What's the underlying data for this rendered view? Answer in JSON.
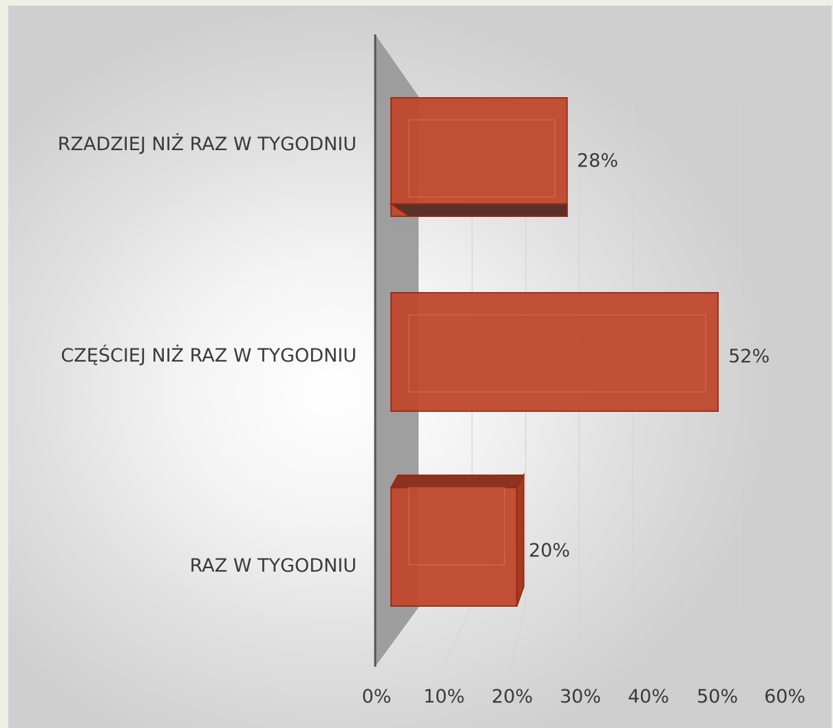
{
  "chart_data": {
    "type": "bar",
    "orientation": "horizontal",
    "style": "3d-clustered-bar",
    "categories": [
      "RZADZIEJ NIŻ RAZ W TYGODNIU",
      "CZĘŚCIEJ NIŻ RAZ W TYGODNIU",
      "RAZ W TYGODNIU"
    ],
    "values": [
      28,
      52,
      20
    ],
    "value_labels": [
      "28%",
      "52%",
      "20%"
    ],
    "title": "",
    "xlabel": "",
    "ylabel": "",
    "xlim": [
      0,
      60
    ],
    "x_ticks": [
      "0%",
      "10%",
      "20%",
      "30%",
      "40%",
      "50%",
      "60%"
    ],
    "grid": true,
    "legend": "none",
    "colors": {
      "bar": "#c0482d",
      "bar_edge": "#9a2a15",
      "bar_shadow": "#5a3028",
      "wall": "#9a9a9a",
      "axis": "#555555",
      "gridline": "#d4d4d4"
    }
  }
}
